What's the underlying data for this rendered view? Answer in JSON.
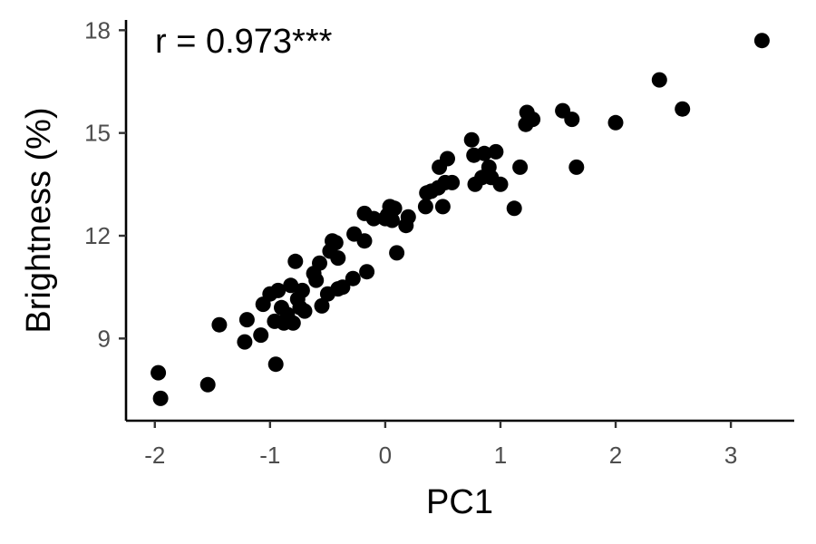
{
  "chart_data": {
    "type": "scatter",
    "xlabel": "PC1",
    "ylabel": "Brightness (%)",
    "annotation": "r = 0.973***",
    "xlim": [
      -2.25,
      3.55
    ],
    "ylim": [
      6.6,
      18.3
    ],
    "x_ticks": [
      -2,
      -1,
      0,
      1,
      2,
      3
    ],
    "x_tick_labels": [
      "-2",
      "-1",
      "0",
      "1",
      "2",
      "3"
    ],
    "y_ticks": [
      9,
      12,
      15,
      18
    ],
    "y_tick_labels": [
      "9",
      "12",
      "15",
      "18"
    ],
    "grid": false,
    "legend": "none",
    "point_color": "#000000",
    "points": [
      {
        "x": -1.97,
        "y": 8.0
      },
      {
        "x": -1.95,
        "y": 7.25
      },
      {
        "x": -1.54,
        "y": 7.65
      },
      {
        "x": -1.44,
        "y": 9.4
      },
      {
        "x": -1.22,
        "y": 8.9
      },
      {
        "x": -1.2,
        "y": 9.55
      },
      {
        "x": -1.08,
        "y": 9.1
      },
      {
        "x": -1.06,
        "y": 10.0
      },
      {
        "x": -1.0,
        "y": 10.3
      },
      {
        "x": -0.96,
        "y": 9.5
      },
      {
        "x": -0.95,
        "y": 8.25
      },
      {
        "x": -0.93,
        "y": 10.4
      },
      {
        "x": -0.9,
        "y": 9.9
      },
      {
        "x": -0.88,
        "y": 9.45
      },
      {
        "x": -0.85,
        "y": 9.7
      },
      {
        "x": -0.82,
        "y": 10.55
      },
      {
        "x": -0.8,
        "y": 9.45
      },
      {
        "x": -0.78,
        "y": 11.25
      },
      {
        "x": -0.76,
        "y": 10.15
      },
      {
        "x": -0.74,
        "y": 9.9
      },
      {
        "x": -0.72,
        "y": 10.4
      },
      {
        "x": -0.7,
        "y": 9.8
      },
      {
        "x": -0.62,
        "y": 10.9
      },
      {
        "x": -0.6,
        "y": 10.7
      },
      {
        "x": -0.57,
        "y": 11.2
      },
      {
        "x": -0.55,
        "y": 9.95
      },
      {
        "x": -0.5,
        "y": 10.3
      },
      {
        "x": -0.48,
        "y": 11.55
      },
      {
        "x": -0.46,
        "y": 11.85
      },
      {
        "x": -0.43,
        "y": 11.8
      },
      {
        "x": -0.41,
        "y": 10.45
      },
      {
        "x": -0.41,
        "y": 11.35
      },
      {
        "x": -0.37,
        "y": 10.5
      },
      {
        "x": -0.28,
        "y": 10.75
      },
      {
        "x": -0.27,
        "y": 12.05
      },
      {
        "x": -0.18,
        "y": 11.85
      },
      {
        "x": -0.16,
        "y": 10.95
      },
      {
        "x": -0.18,
        "y": 12.65
      },
      {
        "x": -0.1,
        "y": 12.5
      },
      {
        "x": 0.0,
        "y": 12.5
      },
      {
        "x": 0.02,
        "y": 12.6
      },
      {
        "x": 0.04,
        "y": 12.85
      },
      {
        "x": 0.06,
        "y": 12.45
      },
      {
        "x": 0.08,
        "y": 12.8
      },
      {
        "x": 0.1,
        "y": 11.5
      },
      {
        "x": 0.18,
        "y": 12.3
      },
      {
        "x": 0.2,
        "y": 12.55
      },
      {
        "x": 0.35,
        "y": 12.85
      },
      {
        "x": 0.36,
        "y": 13.25
      },
      {
        "x": 0.4,
        "y": 13.3
      },
      {
        "x": 0.46,
        "y": 13.4
      },
      {
        "x": 0.47,
        "y": 14.0
      },
      {
        "x": 0.5,
        "y": 12.85
      },
      {
        "x": 0.52,
        "y": 13.55
      },
      {
        "x": 0.54,
        "y": 14.25
      },
      {
        "x": 0.58,
        "y": 13.55
      },
      {
        "x": 0.75,
        "y": 14.8
      },
      {
        "x": 0.77,
        "y": 14.35
      },
      {
        "x": 0.78,
        "y": 13.5
      },
      {
        "x": 0.84,
        "y": 13.7
      },
      {
        "x": 0.86,
        "y": 14.4
      },
      {
        "x": 0.9,
        "y": 14.0
      },
      {
        "x": 0.92,
        "y": 13.7
      },
      {
        "x": 0.96,
        "y": 14.45
      },
      {
        "x": 1.0,
        "y": 13.5
      },
      {
        "x": 1.12,
        "y": 12.8
      },
      {
        "x": 1.17,
        "y": 14.0
      },
      {
        "x": 1.22,
        "y": 15.25
      },
      {
        "x": 1.23,
        "y": 15.6
      },
      {
        "x": 1.28,
        "y": 15.4
      },
      {
        "x": 1.54,
        "y": 15.65
      },
      {
        "x": 1.62,
        "y": 15.4
      },
      {
        "x": 1.66,
        "y": 14.0
      },
      {
        "x": 2.0,
        "y": 15.3
      },
      {
        "x": 2.38,
        "y": 16.55
      },
      {
        "x": 2.58,
        "y": 15.7
      },
      {
        "x": 3.27,
        "y": 17.7
      }
    ]
  }
}
